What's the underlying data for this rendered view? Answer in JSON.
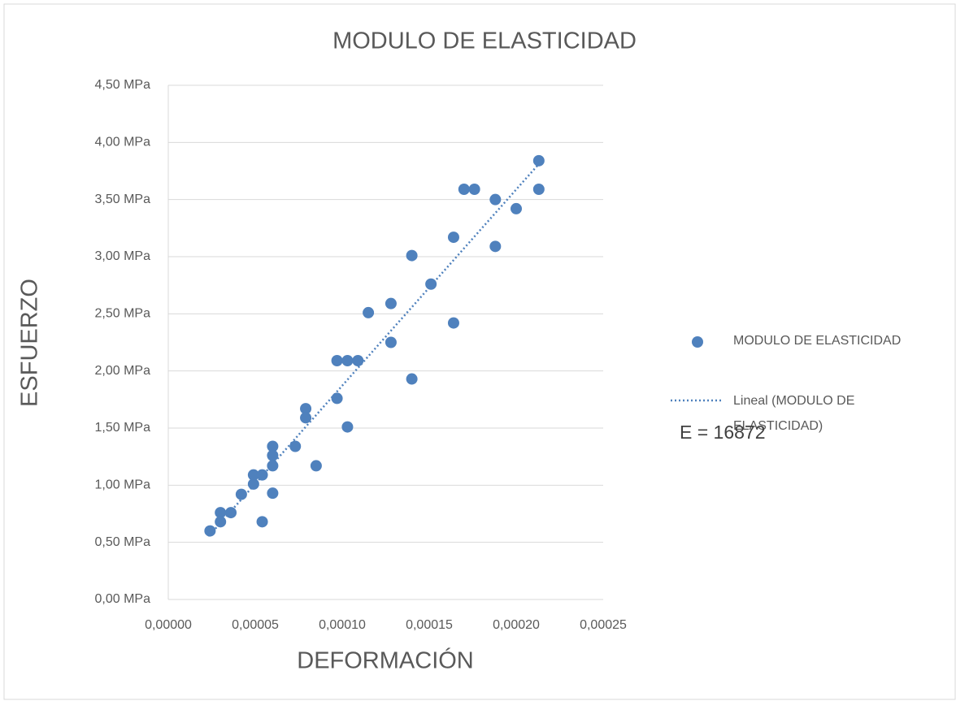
{
  "chart_data": {
    "type": "scatter",
    "title": "MODULO DE ELASTICIDAD",
    "x_label": "DEFORMACIÓN",
    "y_label": "ESFUERZO",
    "annotation": "E = 16872",
    "trendline_name": "Lineal (MODULO DE ELASTICIDAD)",
    "grid": true,
    "legend": "right",
    "xlim": [
      0,
      0.00025
    ],
    "ylim": [
      0,
      4.5
    ],
    "xticks": [
      {
        "value": 0,
        "label": "0,00000"
      },
      {
        "value": 5e-05,
        "label": "0,00005"
      },
      {
        "value": 0.0001,
        "label": "0,00010"
      },
      {
        "value": 0.00015,
        "label": "0,00015"
      },
      {
        "value": 0.0002,
        "label": "0,00020"
      },
      {
        "value": 0.00025,
        "label": "0,00025"
      }
    ],
    "yticks": [
      {
        "value": 0,
        "label": "0,00 MPa"
      },
      {
        "value": 0.5,
        "label": "0,50 MPa"
      },
      {
        "value": 1,
        "label": "1,00 MPa"
      },
      {
        "value": 1.5,
        "label": "1,50 MPa"
      },
      {
        "value": 2,
        "label": "2,00 MPa"
      },
      {
        "value": 2.5,
        "label": "2,50 MPa"
      },
      {
        "value": 3,
        "label": "3,00 MPa"
      },
      {
        "value": 3.5,
        "label": "3,50 MPa"
      },
      {
        "value": 4,
        "label": "4,00 MPa"
      },
      {
        "value": 4.5,
        "label": "4,50 MPa"
      }
    ],
    "series": [
      {
        "name": "MODULO DE ELASTICIDAD",
        "color": "#4f81bd",
        "x": [
          2.4e-05,
          3e-05,
          3e-05,
          3.6e-05,
          4.2e-05,
          4.9e-05,
          4.9e-05,
          5.4e-05,
          5.4e-05,
          6e-05,
          6e-05,
          6e-05,
          6e-05,
          7.3e-05,
          7.9e-05,
          7.9e-05,
          8.5e-05,
          9.7e-05,
          9.7e-05,
          0.000103,
          0.000103,
          0.000109,
          0.000115,
          0.000128,
          0.000128,
          0.00014,
          0.00014,
          0.000151,
          0.000164,
          0.000164,
          0.00017,
          0.000176,
          0.000188,
          0.000188,
          0.0002,
          0.000213,
          0.000213
        ],
        "values": [
          0.6,
          0.76,
          0.68,
          0.76,
          0.92,
          1.01,
          1.09,
          1.09,
          0.68,
          1.34,
          1.26,
          1.17,
          0.93,
          1.34,
          1.67,
          1.59,
          1.17,
          2.09,
          1.76,
          2.09,
          1.51,
          2.09,
          2.51,
          2.59,
          2.25,
          3.01,
          1.93,
          2.76,
          3.17,
          2.42,
          3.59,
          3.59,
          3.5,
          3.09,
          3.42,
          3.84,
          3.59
        ]
      }
    ]
  }
}
